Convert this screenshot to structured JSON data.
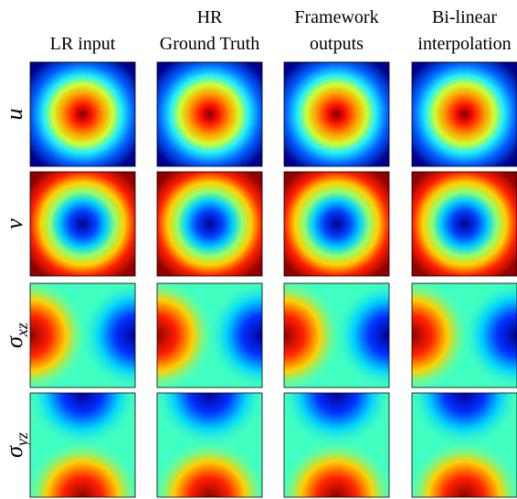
{
  "columns": [
    {
      "lines": [
        "LR input"
      ]
    },
    {
      "lines": [
        "HR",
        "Ground Truth"
      ]
    },
    {
      "lines": [
        "Framework",
        "outputs"
      ]
    },
    {
      "lines": [
        "Bi-linear",
        "interpolation"
      ]
    }
  ],
  "rows": [
    {
      "symbol": "u"
    },
    {
      "symbol": "v"
    },
    {
      "symbol": "σ",
      "subscript": "xz"
    },
    {
      "symbol": "σ",
      "subscript": "yz"
    }
  ]
}
